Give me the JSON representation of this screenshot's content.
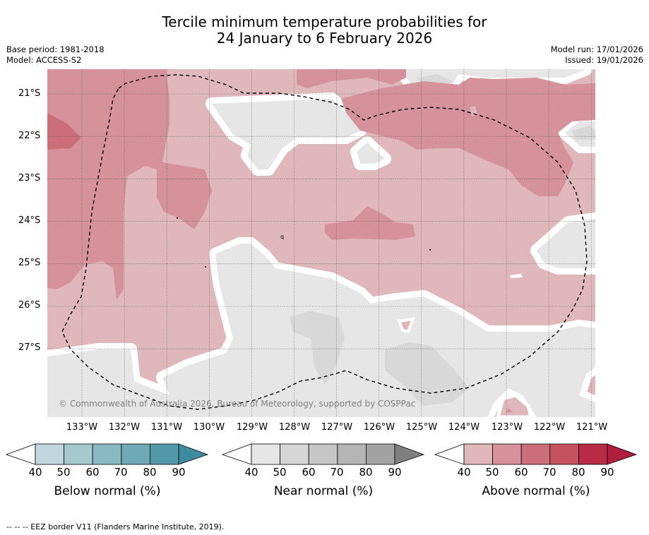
{
  "title": {
    "line1": "Tercile minimum temperature probabilities for",
    "line2": "24 January to 6 February 2026"
  },
  "meta_left": {
    "base_period": "Base period: 1981-2018",
    "model": "Model: ACCESS-S2"
  },
  "meta_right": {
    "model_run": "Model run: 17/01/2026",
    "issued": "Issued: 19/01/2026"
  },
  "map": {
    "copyright": "© Commonwealth of Australia 2026, Bureau of Meteorology, supported by COSPPac",
    "lat_labels": [
      "21°S",
      "22°S",
      "23°S",
      "24°S",
      "25°S",
      "26°S",
      "27°S"
    ],
    "lon_labels": [
      "133°W",
      "132°W",
      "131°W",
      "130°W",
      "129°W",
      "128°W",
      "127°W",
      "126°W",
      "125°W",
      "124°W",
      "123°W",
      "122°W",
      "121°W"
    ],
    "island_labels": [
      "q"
    ],
    "colors": {
      "above_40": "#e0b8bc",
      "above_50": "#d5929a",
      "above_60": "#cc6e78",
      "near_40": "#e6e6e6",
      "near_50": "#d8d8d8",
      "ocean_blank": "#ffffff"
    }
  },
  "colorbars": [
    {
      "title": "Below normal (%)",
      "ticks": [
        "40",
        "50",
        "60",
        "70",
        "80",
        "90"
      ],
      "colors": [
        "#c0d8dd",
        "#a6c9d0",
        "#8bb9c3",
        "#6fa9b6",
        "#5499a8",
        "#3d8b9c"
      ]
    },
    {
      "title": "Near normal (%)",
      "ticks": [
        "40",
        "50",
        "60",
        "70",
        "80",
        "90"
      ],
      "colors": [
        "#e6e6e6",
        "#d6d6d6",
        "#c6c6c6",
        "#b5b5b5",
        "#a3a3a3",
        "#7f7f7f"
      ]
    },
    {
      "title": "Above normal (%)",
      "ticks": [
        "40",
        "50",
        "60",
        "70",
        "80",
        "90"
      ],
      "colors": [
        "#e0b8bc",
        "#d5929a",
        "#cc6e78",
        "#c5525f",
        "#b92a44",
        "#b01e3e"
      ]
    }
  ],
  "footer": "--  --  -- EEZ border V11 (Flanders Marine Institute, 2019)."
}
